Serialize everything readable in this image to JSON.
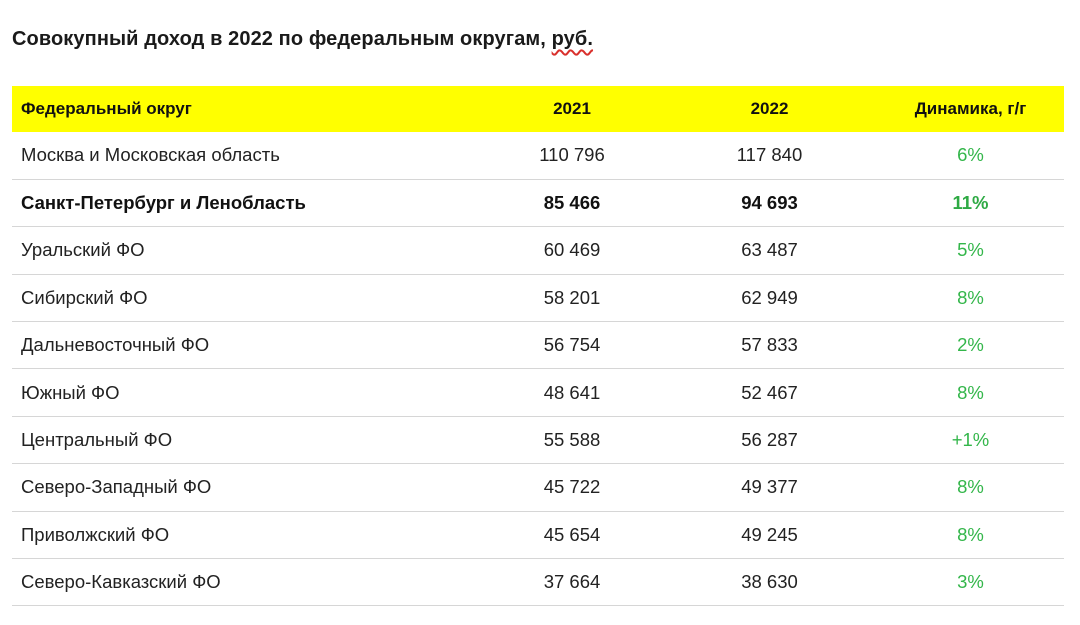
{
  "title": {
    "main": "Совокупный доход в 2022 по федеральным округам, ",
    "unit": "руб."
  },
  "colors": {
    "header_background": "#ffff00",
    "dynamics_text": "#33b64a",
    "spellcheck_underline": "#d9302c"
  },
  "table": {
    "headers": {
      "district": "Федеральный округ",
      "y2021": "2021",
      "y2022": "2022",
      "dynamics": "Динамика, г/г"
    },
    "rows": [
      {
        "district": "Москва и Московская область",
        "y2021": "110 796",
        "y2022": "117 840",
        "dynamics": "6%",
        "bold": false
      },
      {
        "district": "Санкт-Петербург и Ленобласть",
        "y2021": "85 466",
        "y2022": "94 693",
        "dynamics": "11%",
        "bold": true
      },
      {
        "district": "Уральский ФО",
        "y2021": "60 469",
        "y2022": "63 487",
        "dynamics": "5%",
        "bold": false
      },
      {
        "district": "Сибирский ФО",
        "y2021": "58 201",
        "y2022": "62 949",
        "dynamics": "8%",
        "bold": false
      },
      {
        "district": "Дальневосточный ФО",
        "y2021": "56 754",
        "y2022": "57 833",
        "dynamics": "2%",
        "bold": false
      },
      {
        "district": "Южный ФО",
        "y2021": "48 641",
        "y2022": "52 467",
        "dynamics": "8%",
        "bold": false
      },
      {
        "district": "Центральный ФО",
        "y2021": "55 588",
        "y2022": "56 287",
        "dynamics": "+1%",
        "bold": false
      },
      {
        "district": "Северо-Западный ФО",
        "y2021": "45 722",
        "y2022": "49 377",
        "dynamics": "8%",
        "bold": false
      },
      {
        "district": "Приволжский ФО",
        "y2021": "45 654",
        "y2022": "49 245",
        "dynamics": "8%",
        "bold": false
      },
      {
        "district": "Северо-Кавказский ФО",
        "y2021": "37 664",
        "y2022": "38 630",
        "dynamics": "3%",
        "bold": false
      }
    ]
  }
}
